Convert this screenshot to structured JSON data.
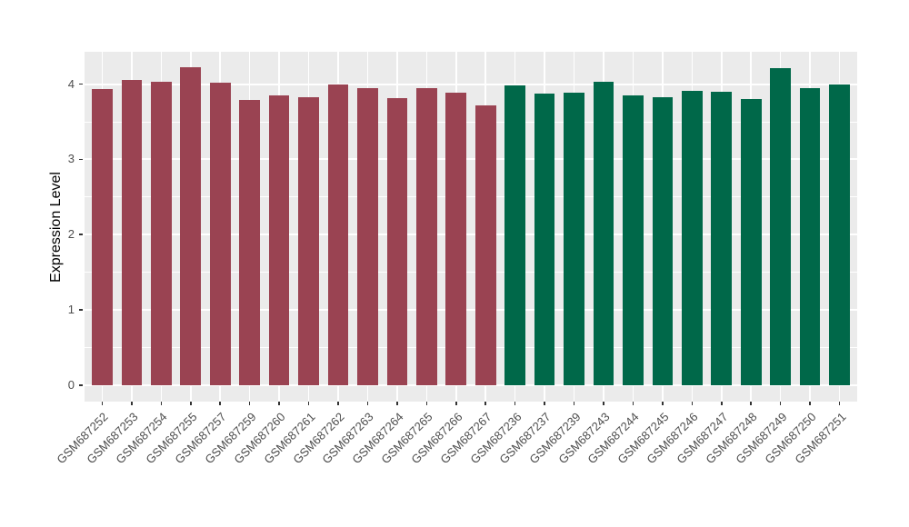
{
  "chart_data": {
    "type": "bar",
    "title": "",
    "xlabel": "",
    "ylabel": "Expression Level",
    "legend_position": "none",
    "grid": true,
    "panel_bg": "#EBEBEB",
    "grid_color": "#FFFFFF",
    "tick_label_color": "#4D4D4D",
    "axis_title_color": "#000000",
    "yticks": [
      0,
      1,
      2,
      3,
      4
    ],
    "ytick_labels": [
      "0",
      "1",
      "2",
      "3",
      "4"
    ],
    "yticks_minor": [
      0.5,
      1.5,
      2.5,
      3.5
    ],
    "ylim": [
      -0.22,
      4.43
    ],
    "categories": [
      "GSM687252",
      "GSM687253",
      "GSM687254",
      "GSM687255",
      "GSM687257",
      "GSM687259",
      "GSM687260",
      "GSM687261",
      "GSM687262",
      "GSM687263",
      "GSM687264",
      "GSM687265",
      "GSM687266",
      "GSM687267",
      "GSM687236",
      "GSM687237",
      "GSM687239",
      "GSM687243",
      "GSM687244",
      "GSM687245",
      "GSM687246",
      "GSM687247",
      "GSM687248",
      "GSM687249",
      "GSM687250",
      "GSM687251"
    ],
    "values": [
      3.93,
      4.05,
      4.03,
      4.22,
      4.02,
      3.79,
      3.85,
      3.83,
      4.0,
      3.95,
      3.81,
      3.95,
      3.89,
      3.72,
      3.98,
      3.88,
      3.89,
      4.03,
      3.85,
      3.83,
      3.91,
      3.9,
      3.8,
      4.21,
      3.95,
      3.99
    ],
    "bar_colors": [
      "#9A4352",
      "#9A4352",
      "#9A4352",
      "#9A4352",
      "#9A4352",
      "#9A4352",
      "#9A4352",
      "#9A4352",
      "#9A4352",
      "#9A4352",
      "#9A4352",
      "#9A4352",
      "#9A4352",
      "#9A4352",
      "#006849",
      "#006849",
      "#006849",
      "#006849",
      "#006849",
      "#006849",
      "#006849",
      "#006849",
      "#006849",
      "#006849",
      "#006849",
      "#006849"
    ]
  }
}
